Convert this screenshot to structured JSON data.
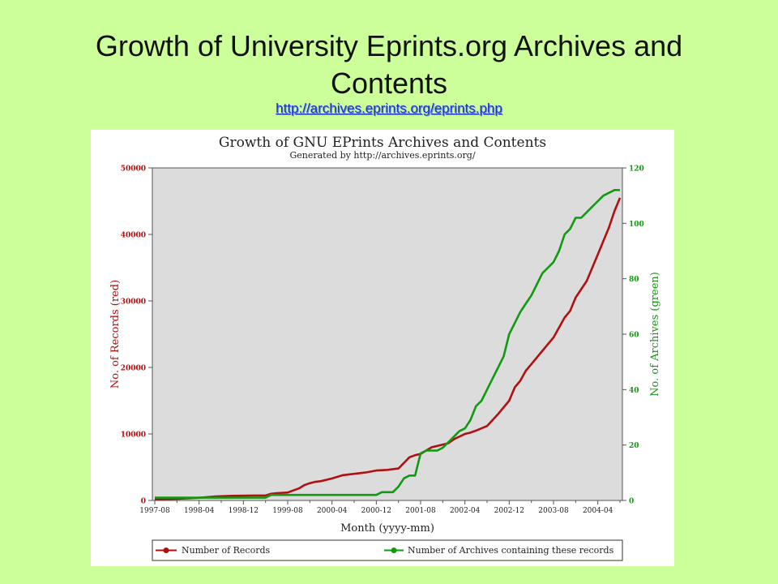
{
  "slide": {
    "title": "Growth of University Eprints.org Archives and Contents",
    "link": "http://archives.eprints.org/eprints.php"
  },
  "chart_data": {
    "type": "line",
    "title": "Growth of GNU EPrints Archives and Contents",
    "subtitle": "Generated by http://archives.eprints.org/",
    "xlabel": "Month (yyyy-mm)",
    "ylabel_left": "No. of Records (red)",
    "ylabel_right": "No. of Archives (green)",
    "x_ticks": [
      "1997-08",
      "1998-04",
      "1998-12",
      "1999-08",
      "2000-04",
      "2000-12",
      "2001-08",
      "2002-04",
      "2002-12",
      "2003-08",
      "2004-04"
    ],
    "x_range": [
      0,
      84
    ],
    "y_left_ticks": [
      "0",
      "10000",
      "20000",
      "30000",
      "40000",
      "50000"
    ],
    "y_left_range": [
      0,
      50000
    ],
    "y_right_ticks": [
      "0",
      "20",
      "40",
      "60",
      "80",
      "100",
      "120"
    ],
    "y_right_range": [
      0,
      120
    ],
    "grid": false,
    "legend_position": "bottom",
    "background_color": "#dcdcdc",
    "series": [
      {
        "name": "Number of Records",
        "axis": "left",
        "color": "#b01010",
        "x": [
          0,
          4,
          8,
          11,
          14,
          18,
          20,
          21,
          22,
          24,
          26,
          27,
          28,
          29,
          30,
          32,
          34,
          36,
          38,
          40,
          42,
          44,
          46,
          47,
          48,
          49,
          50,
          51,
          52,
          53,
          54,
          56,
          57,
          58,
          60,
          62,
          64,
          65,
          66,
          67,
          68,
          70,
          72,
          74,
          75,
          76,
          78,
          80,
          82,
          83,
          84
        ],
        "y": [
          200,
          250,
          400,
          600,
          700,
          750,
          750,
          1000,
          1100,
          1200,
          1800,
          2300,
          2600,
          2800,
          2900,
          3300,
          3800,
          4000,
          4200,
          4500,
          4600,
          4800,
          6500,
          6800,
          7000,
          7500,
          8000,
          8200,
          8400,
          8600,
          9200,
          10000,
          10200,
          10500,
          11200,
          13000,
          15000,
          17000,
          18000,
          19500,
          20500,
          22500,
          24500,
          27500,
          28500,
          30500,
          33000,
          37000,
          41000,
          43500,
          45500
        ]
      },
      {
        "name": "Number of Archives containing these records",
        "axis": "right",
        "color": "#119911",
        "x": [
          0,
          10,
          14,
          20,
          21,
          30,
          40,
          41,
          43,
          44,
          45,
          46,
          47,
          48,
          49,
          50,
          51,
          52,
          53,
          54,
          55,
          56,
          57,
          58,
          59,
          60,
          61,
          62,
          63,
          64,
          65,
          66,
          67,
          68,
          69,
          70,
          71,
          72,
          73,
          74,
          75,
          76,
          77,
          78,
          79,
          80,
          81,
          82,
          83,
          84
        ],
        "y": [
          1,
          1,
          1,
          1,
          2,
          2,
          2,
          3,
          3,
          5,
          8,
          9,
          9,
          17,
          18,
          18,
          18,
          19,
          21,
          23,
          25,
          26,
          29,
          34,
          36,
          40,
          44,
          48,
          52,
          60,
          64,
          68,
          71,
          74,
          78,
          82,
          84,
          86,
          90,
          96,
          98,
          102,
          102,
          104,
          106,
          108,
          110,
          111,
          112,
          112
        ]
      }
    ]
  }
}
